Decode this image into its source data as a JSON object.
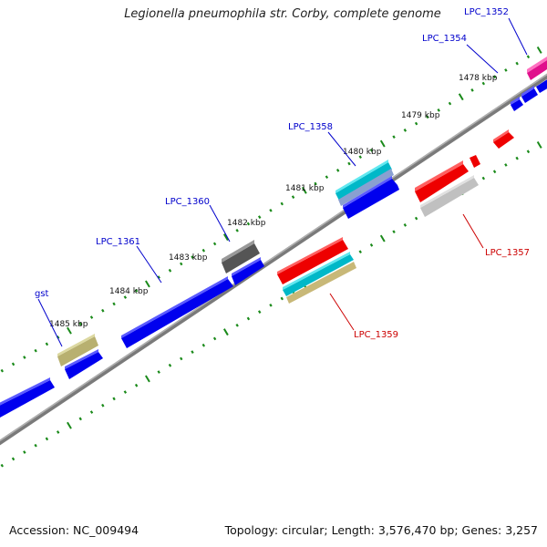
{
  "title": "Legionella pneumophila str. Corby, complete genome",
  "footer": {
    "accession": "Accession: NC_009494",
    "summary": "Topology: circular; Length: 3,576,470 bp; Genes: 3,257"
  },
  "ticks": [
    "1478 kbp",
    "1479 kbp",
    "1480 kbp",
    "1481 kbp",
    "1482 kbp",
    "1483 kbp",
    "1484 kbp",
    "1485 kbp"
  ],
  "gene_labels": {
    "forward": [
      "LPC_1352",
      "LPC_1354",
      "LPC_1358",
      "LPC_1360",
      "LPC_1361",
      "gst"
    ],
    "reverse": [
      "LPC_1357",
      "LPC_1359"
    ]
  },
  "colors": {
    "forward_gene": "#0000ee",
    "reverse_gene": "#ee0000",
    "backbone": "#808080",
    "tick": "#1a8a1a",
    "forward_label": "#0000cc",
    "reverse_label": "#cc0000"
  }
}
